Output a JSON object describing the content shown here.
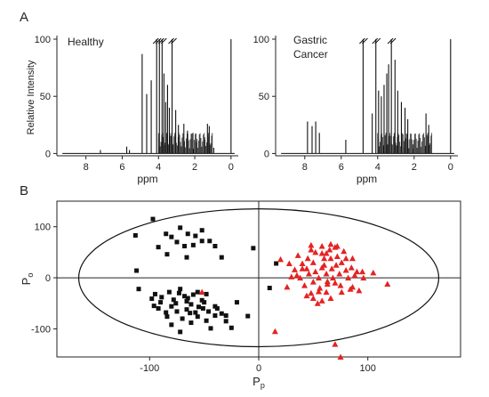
{
  "chart_data": [
    {
      "panel_label": "A",
      "type": "line",
      "subtype": "nmr-spectrum",
      "annotation": "Healthy",
      "xlabel": "ppm",
      "ylabel": "Relative Intensity",
      "xlim": [
        9.6,
        -0.4
      ],
      "ylim": [
        -2,
        100
      ],
      "x_ticks": [
        "8",
        "6",
        "4",
        "2",
        "0"
      ],
      "y_ticks": [
        "0",
        "50",
        "100"
      ],
      "peaks_truncated_at_ppm": [
        4.1,
        3.8,
        3.25
      ],
      "peaks": [
        [
          7.2,
          3
        ],
        [
          5.75,
          6
        ],
        [
          5.6,
          3
        ],
        [
          4.9,
          87
        ],
        [
          4.65,
          52
        ],
        [
          4.4,
          64
        ],
        [
          4.1,
          100
        ],
        [
          3.95,
          100
        ],
        [
          3.8,
          100
        ],
        [
          3.7,
          70
        ],
        [
          3.6,
          45
        ],
        [
          3.5,
          60
        ],
        [
          3.4,
          40
        ],
        [
          3.25,
          100
        ],
        [
          3.05,
          38
        ],
        [
          2.9,
          25
        ],
        [
          2.6,
          26
        ],
        [
          2.4,
          20
        ],
        [
          2.1,
          18
        ],
        [
          1.9,
          10
        ],
        [
          1.45,
          12
        ],
        [
          1.3,
          26
        ],
        [
          1.2,
          24
        ],
        [
          0.95,
          5
        ],
        [
          0.0,
          100
        ]
      ]
    },
    {
      "type": "line",
      "subtype": "nmr-spectrum",
      "annotation": [
        "Gastric",
        "Cancer"
      ],
      "xlabel": "ppm",
      "ylabel": "",
      "xlim": [
        9.6,
        -0.4
      ],
      "ylim": [
        -2,
        100
      ],
      "x_ticks": [
        "8",
        "6",
        "4",
        "2",
        "0"
      ],
      "y_ticks": [
        "0",
        "50",
        "100"
      ],
      "peaks_truncated_at_ppm": [
        4.8,
        4.1,
        3.25
      ],
      "peaks": [
        [
          7.85,
          28
        ],
        [
          7.6,
          24
        ],
        [
          7.4,
          28
        ],
        [
          7.2,
          18
        ],
        [
          5.75,
          12
        ],
        [
          4.8,
          100
        ],
        [
          4.3,
          35
        ],
        [
          4.1,
          100
        ],
        [
          3.95,
          55
        ],
        [
          3.8,
          50
        ],
        [
          3.65,
          60
        ],
        [
          3.5,
          70
        ],
        [
          3.4,
          78
        ],
        [
          3.25,
          100
        ],
        [
          3.05,
          82
        ],
        [
          2.9,
          55
        ],
        [
          2.7,
          45
        ],
        [
          2.5,
          40
        ],
        [
          2.35,
          30
        ],
        [
          2.05,
          8
        ],
        [
          1.35,
          35
        ],
        [
          1.2,
          25
        ],
        [
          0.0,
          100
        ]
      ]
    },
    {
      "panel_label": "B",
      "type": "scatter",
      "xlabel": "P",
      "xlabel_sub": "p",
      "ylabel": "P",
      "ylabel_sub": "o",
      "xlim": [
        -185,
        185
      ],
      "ylim": [
        -155,
        150
      ],
      "x_ticks": [
        -100,
        0,
        100
      ],
      "y_ticks": [
        -100,
        0,
        100
      ],
      "ellipse": {
        "center": [
          0,
          0
        ],
        "rx": 165,
        "ry": 135
      },
      "series": [
        {
          "marker": "square",
          "color": "#111111",
          "points": [
            [
              -113,
              83
            ],
            [
              -97,
              115
            ],
            [
              -85,
              86
            ],
            [
              -72,
              98
            ],
            [
              -65,
              86
            ],
            [
              -80,
              80
            ],
            [
              -92,
              60
            ],
            [
              -75,
              70
            ],
            [
              -58,
              82
            ],
            [
              -52,
              93
            ],
            [
              -60,
              64
            ],
            [
              -66,
              40
            ],
            [
              -52,
              72
            ],
            [
              -45,
              72
            ],
            [
              -40,
              62
            ],
            [
              -34,
              40
            ],
            [
              -84,
              46
            ],
            [
              -68,
              62
            ],
            [
              -112,
              14
            ],
            [
              -5,
              58
            ],
            [
              -110,
              -22
            ],
            [
              -95,
              -32
            ],
            [
              -90,
              -48
            ],
            [
              -82,
              -28
            ],
            [
              -78,
              -43
            ],
            [
              -72,
              -22
            ],
            [
              -68,
              -36
            ],
            [
              -66,
              -62
            ],
            [
              -62,
              -52
            ],
            [
              -56,
              -28
            ],
            [
              -52,
              -44
            ],
            [
              -48,
              -32
            ],
            [
              -46,
              -66
            ],
            [
              -40,
              -56
            ],
            [
              -34,
              -70
            ],
            [
              -30,
              -74
            ],
            [
              -58,
              -68
            ],
            [
              -62,
              -88
            ],
            [
              -72,
              -106
            ],
            [
              -75,
              -66
            ],
            [
              -92,
              -60
            ],
            [
              -84,
              -76
            ],
            [
              -48,
              -84
            ],
            [
              -66,
              -46
            ],
            [
              -76,
              -50
            ],
            [
              -40,
              -74
            ],
            [
              -10,
              -75
            ],
            [
              -25,
              -98
            ],
            [
              -80,
              -56
            ],
            [
              -70,
              -80
            ],
            [
              -55,
              -57
            ],
            [
              -44,
              -99
            ],
            [
              -60,
              -33
            ],
            [
              -85,
              -68
            ],
            [
              -50,
              -48
            ],
            [
              -38,
              -60
            ],
            [
              -20,
              -48
            ],
            [
              -65,
              -40
            ],
            [
              -98,
              -41
            ],
            [
              -56,
              -76
            ],
            [
              -73,
              -30
            ],
            [
              -51,
              -60
            ],
            [
              -96,
              -55
            ],
            [
              10,
              -20
            ],
            [
              -30,
              -85
            ],
            [
              -89,
              -38
            ],
            [
              -63,
              -69
            ],
            [
              -80,
              -92
            ],
            [
              16,
              28
            ]
          ]
        },
        {
          "marker": "triangle",
          "color": "#e52222",
          "points": [
            [
              -52,
              -28
            ],
            [
              15,
              -105
            ],
            [
              20,
              36
            ],
            [
              30,
              2
            ],
            [
              26,
              -18
            ],
            [
              35,
              5
            ],
            [
              40,
              18
            ],
            [
              45,
              38
            ],
            [
              48,
              64
            ],
            [
              50,
              30
            ],
            [
              52,
              12
            ],
            [
              55,
              0
            ],
            [
              56,
              -20
            ],
            [
              58,
              48
            ],
            [
              60,
              25
            ],
            [
              62,
              8
            ],
            [
              63,
              -12
            ],
            [
              65,
              55
            ],
            [
              66,
              38
            ],
            [
              67,
              18
            ],
            [
              68,
              0
            ],
            [
              70,
              -10
            ],
            [
              71,
              25
            ],
            [
              72,
              42
            ],
            [
              74,
              8
            ],
            [
              75,
              -15
            ],
            [
              76,
              30
            ],
            [
              78,
              52
            ],
            [
              80,
              15
            ],
            [
              82,
              0
            ],
            [
              84,
              -22
            ],
            [
              85,
              20
            ],
            [
              86,
              -18
            ],
            [
              88,
              5
            ],
            [
              90,
              12
            ],
            [
              92,
              -25
            ],
            [
              95,
              12
            ],
            [
              105,
              10
            ],
            [
              118,
              -12
            ],
            [
              42,
              -15
            ],
            [
              38,
              0
            ],
            [
              44,
              -35
            ],
            [
              50,
              -40
            ],
            [
              54,
              -50
            ],
            [
              58,
              -45
            ],
            [
              62,
              -28
            ],
            [
              40,
              28
            ],
            [
              48,
              55
            ],
            [
              58,
              62
            ],
            [
              66,
              66
            ],
            [
              72,
              62
            ],
            [
              46,
              8
            ],
            [
              52,
              50
            ],
            [
              60,
              38
            ],
            [
              70,
              60
            ],
            [
              80,
              38
            ],
            [
              63,
              -7
            ],
            [
              55,
              -27
            ],
            [
              48,
              -30
            ],
            [
              33,
              16
            ],
            [
              36,
              44
            ],
            [
              28,
              28
            ],
            [
              70,
              -130
            ],
            [
              76,
              -28
            ],
            [
              66,
              -40
            ],
            [
              58,
              20
            ],
            [
              44,
              18
            ],
            [
              50,
              -8
            ],
            [
              62,
              48
            ],
            [
              86,
              38
            ],
            [
              75,
              -155
            ],
            [
              96,
              0
            ]
          ]
        }
      ]
    }
  ]
}
